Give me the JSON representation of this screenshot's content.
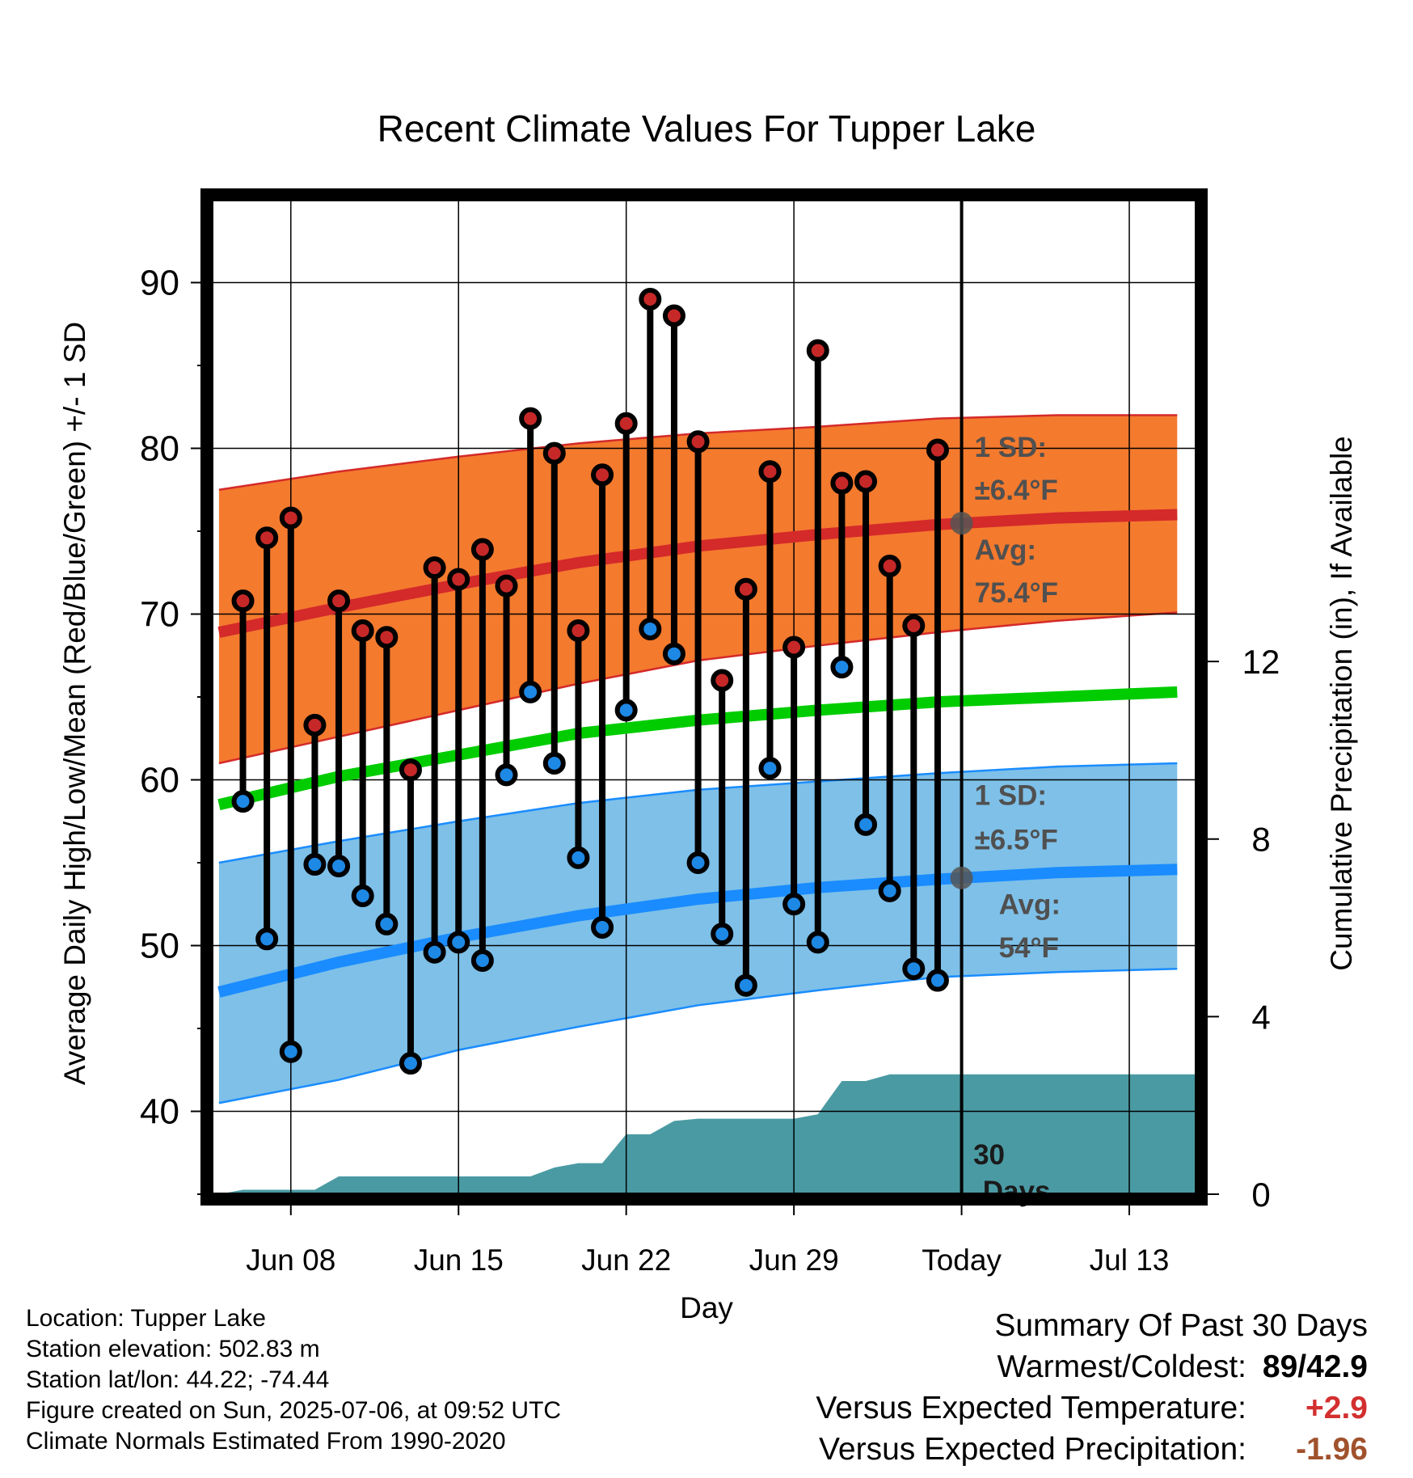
{
  "chart_data": {
    "type": "line",
    "title": "Recent Climate Values For Tupper Lake",
    "xlabel": "Day",
    "ylabel": "Average Daily High/Low/Mean (Red/Blue/Green) +/- 1 SD",
    "y2label": "Cumulative Precipitation (in), If Available",
    "ylim": [
      35,
      95
    ],
    "y_ticks": [
      "40",
      "50",
      "60",
      "70",
      "80",
      "90"
    ],
    "y2lim": [
      0,
      22.4
    ],
    "y2_ticks": [
      "0",
      "4",
      "8",
      "12"
    ],
    "x_tick_labels": [
      "Jun 08",
      "Jun 15",
      "Jun 22",
      "Jun 29",
      "Today",
      "Jul 13"
    ],
    "x_tick_days": [
      8,
      15,
      22,
      29,
      36,
      43
    ],
    "xlim": [
      4.7,
      45.8
    ],
    "today_day": 36,
    "series": [
      {
        "name": "High",
        "color": "#c62828",
        "days": [
          6,
          7,
          8,
          9,
          10,
          11,
          12,
          13,
          14,
          15,
          16,
          17,
          18,
          19,
          20,
          21,
          22,
          23,
          24,
          25,
          26,
          27,
          28,
          29,
          30,
          31,
          32,
          33,
          34,
          35
        ],
        "values": [
          70.8,
          74.6,
          75.8,
          63.3,
          70.8,
          69.0,
          68.6,
          60.6,
          72.8,
          72.1,
          73.9,
          71.7,
          81.8,
          79.7,
          69.0,
          78.4,
          81.5,
          89.0,
          88.0,
          80.4,
          66.0,
          71.5,
          78.6,
          68.0,
          85.9,
          77.9,
          78.0,
          72.9,
          69.3,
          79.9
        ]
      },
      {
        "name": "Low",
        "color": "#1e88e5",
        "days": [
          6,
          7,
          8,
          9,
          10,
          11,
          12,
          13,
          14,
          15,
          16,
          17,
          18,
          19,
          20,
          21,
          22,
          23,
          24,
          25,
          26,
          27,
          28,
          29,
          30,
          31,
          32,
          33,
          34,
          35
        ],
        "values": [
          58.7,
          50.4,
          43.6,
          54.9,
          54.8,
          53.0,
          51.3,
          42.9,
          49.6,
          50.2,
          49.1,
          60.3,
          65.3,
          61.0,
          55.3,
          51.1,
          64.2,
          69.1,
          67.6,
          55.0,
          50.7,
          47.6,
          60.7,
          52.5,
          50.2,
          66.8,
          57.3,
          53.3,
          48.6,
          47.9
        ]
      },
      {
        "name": "Normal High",
        "color": "#d42a2a",
        "days": [
          5,
          10,
          15,
          20,
          25,
          30,
          35,
          40,
          45
        ],
        "values": [
          68.9,
          70.4,
          71.8,
          73.1,
          74.1,
          74.8,
          75.4,
          75.8,
          76.0
        ]
      },
      {
        "name": "Normal Low",
        "color": "#1a8cff",
        "days": [
          5,
          10,
          15,
          20,
          25,
          30,
          35,
          40,
          45
        ],
        "values": [
          47.2,
          49.0,
          50.5,
          51.8,
          52.8,
          53.5,
          54.0,
          54.4,
          54.6
        ]
      },
      {
        "name": "Normal Mean",
        "color": "#00cc00",
        "days": [
          5,
          10,
          15,
          20,
          25,
          30,
          35,
          40,
          45
        ],
        "values": [
          58.5,
          60.2,
          61.5,
          62.8,
          63.6,
          64.2,
          64.7,
          65.0,
          65.3
        ]
      }
    ],
    "bands": [
      {
        "name": "High +/- 1 SD",
        "color": "#f47a2e",
        "days": [
          5,
          10,
          15,
          20,
          25,
          30,
          35,
          40,
          45
        ],
        "upper": [
          77.5,
          78.6,
          79.5,
          80.3,
          80.9,
          81.3,
          81.8,
          82.0,
          82.0
        ],
        "lower": [
          61.0,
          62.6,
          64.2,
          65.8,
          67.2,
          68.1,
          68.9,
          69.6,
          70.1
        ]
      },
      {
        "name": "Low +/- 1 SD",
        "color": "#7ec0e8",
        "days": [
          5,
          10,
          15,
          20,
          25,
          30,
          35,
          40,
          45
        ],
        "upper": [
          55.0,
          56.3,
          57.5,
          58.6,
          59.4,
          59.9,
          60.4,
          60.8,
          61.0
        ],
        "lower": [
          40.5,
          41.9,
          43.7,
          45.1,
          46.4,
          47.3,
          48.1,
          48.4,
          48.6
        ]
      }
    ],
    "precipitation": {
      "name": "Cumulative Precipitation",
      "color": "#4a9aa3",
      "days": [
        5,
        6,
        7,
        8,
        9,
        10,
        11,
        12,
        13,
        14,
        15,
        16,
        17,
        18,
        19,
        20,
        21,
        22,
        23,
        24,
        25,
        26,
        27,
        28,
        29,
        30,
        31,
        32,
        33,
        34,
        35,
        36,
        46
      ],
      "values": [
        0.0,
        0.1,
        0.1,
        0.1,
        0.1,
        0.4,
        0.4,
        0.4,
        0.4,
        0.4,
        0.4,
        0.4,
        0.4,
        0.4,
        0.6,
        0.7,
        0.7,
        1.35,
        1.35,
        1.65,
        1.7,
        1.7,
        1.7,
        1.7,
        1.7,
        1.8,
        2.55,
        2.55,
        2.7,
        2.7,
        2.7,
        2.7,
        2.7
      ]
    },
    "annotations": {
      "high_sd_label": "1 SD:",
      "high_sd_value": "±6.4°F",
      "high_avg_label": "Avg:",
      "high_avg_value": "75.4°F",
      "low_sd_label": "1 SD:",
      "low_sd_value": "±6.5°F",
      "low_avg_label": "Avg:",
      "low_avg_value": "54°F",
      "days_number": "30",
      "days_word": "Days"
    },
    "grid": true
  },
  "info": {
    "location": "Location: Tupper Lake",
    "elevation": "Station elevation: 502.83 m",
    "latlon": "Station lat/lon: 44.22; -74.44",
    "created": "Figure created on Sun, 2025-07-06, at 09:52 UTC",
    "normals": "Climate Normals Estimated From 1990-2020"
  },
  "summary": {
    "title": "Summary Of Past 30 Days",
    "warmest_coldest_label": "Warmest/Coldest:",
    "warmest_coldest_value": "89/42.9",
    "temp_label": "Versus Expected Temperature:",
    "temp_value": "+2.9",
    "temp_color": "#d32f2f",
    "precip_label": "Versus Expected Precipitation:",
    "precip_value": "-1.96",
    "precip_color": "#a0522d"
  }
}
